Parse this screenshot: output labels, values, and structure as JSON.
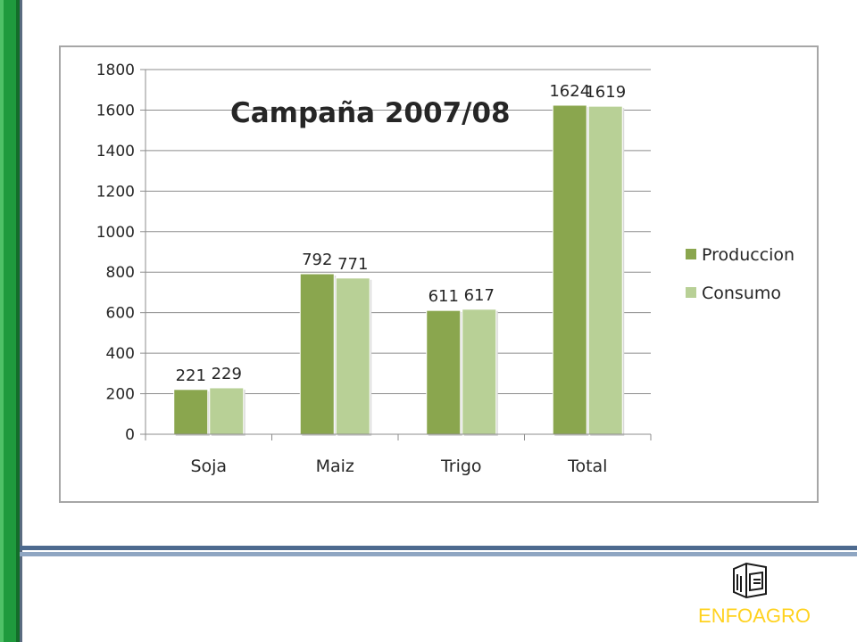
{
  "chart_data": {
    "type": "bar",
    "title": "Campaña 2007/08",
    "categories": [
      "Soja",
      "Maiz",
      "Trigo",
      "Total"
    ],
    "series": [
      {
        "name": "Produccion",
        "values": [
          221,
          792,
          611,
          1624
        ],
        "color": "#8aa64e"
      },
      {
        "name": "Consumo",
        "values": [
          229,
          771,
          617,
          1619
        ],
        "color": "#b8d096"
      }
    ],
    "ylim": [
      0,
      1800
    ],
    "yticks": [
      0,
      200,
      400,
      600,
      800,
      1000,
      1200,
      1400,
      1600,
      1800
    ],
    "grid": true,
    "legend_position": "right"
  },
  "logo": {
    "text": "ENFOAGRO",
    "icon": "building-icon",
    "color": "#ffd21f"
  },
  "theme": {
    "left_bar_color": "#1f9a3d",
    "line_color": "#4d6a8f"
  }
}
